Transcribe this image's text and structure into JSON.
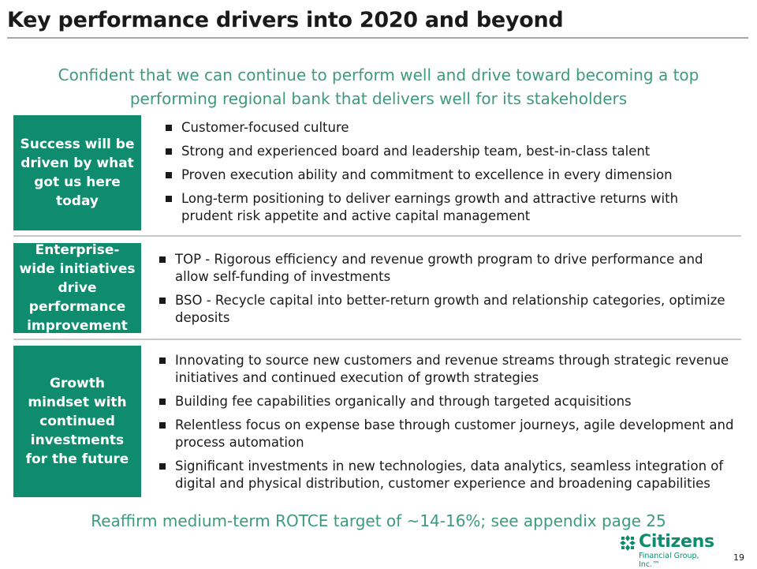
{
  "title": "Key performance drivers into 2020 and beyond",
  "subtitle": "Confident that we can continue to perform well and drive toward becoming a top performing regional bank that delivers well for its stakeholders",
  "sections": [
    {
      "label": "Success will be driven by what got us here today",
      "bullets": [
        "Customer-focused culture",
        "Strong and experienced board and leadership team, best-in-class talent",
        "Proven execution ability and commitment to excellence in every dimension",
        "Long-term positioning to deliver earnings growth and attractive returns with prudent risk appetite and active capital management"
      ]
    },
    {
      "label": "Enterprise-wide initiatives drive performance improvement",
      "bullets": [
        "TOP - Rigorous efficiency and revenue growth program to drive performance and allow self-funding of investments",
        "BSO - Recycle capital into better-return growth and relationship categories, optimize deposits"
      ]
    },
    {
      "label": "Growth mindset with continued investments for the future",
      "bullets": [
        "Innovating to source new customers and revenue streams through strategic revenue initiatives and continued execution of growth strategies",
        "Building fee capabilities organically and through targeted acquisitions",
        "Relentless focus on expense base through customer journeys, agile development and process automation",
        "Significant investments in new technologies, data analytics, seamless integration of digital and physical distribution, customer experience and broadening capabilities"
      ]
    }
  ],
  "footer": "Reaffirm medium-term ROTCE target of ~14-16%; see appendix page 25",
  "logo": {
    "name": "Citizens",
    "sub": "Financial Group, Inc.™",
    "icon": "citizens-logo-icon"
  },
  "page_number": "19",
  "colors": {
    "brand_green": "#0f8c6e",
    "accent_text": "#3d9a7c",
    "rule_gray": "#a6a6a6"
  }
}
